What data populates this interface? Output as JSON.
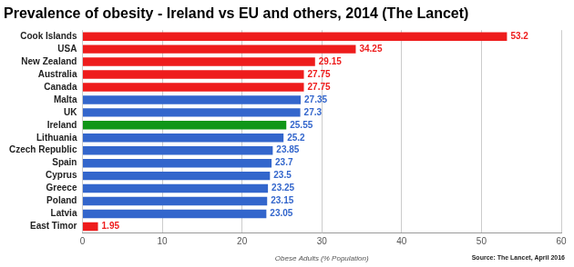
{
  "chart_data": {
    "type": "bar",
    "orientation": "horizontal",
    "title": "Prevalence of obesity - Ireland vs EU and others, 2014 (The Lancet)",
    "x_label": "Obese Adults (% Population)",
    "annotations": [
      "Source: The Lancet, April 2016"
    ],
    "categories": [
      "Cook Islands",
      "USA",
      "New Zealand",
      "Australia",
      "Canada",
      "Malta",
      "UK",
      "Ireland",
      "Lithuania",
      "Czech Republic",
      "Spain",
      "Cyprus",
      "Greece",
      "Poland",
      "Latvia",
      "East Timor"
    ],
    "values": [
      53.2,
      34.25,
      29.15,
      27.75,
      27.75,
      27.35,
      27.3,
      25.55,
      25.2,
      23.85,
      23.7,
      23.5,
      23.25,
      23.15,
      23.05,
      1.95
    ],
    "colors": [
      "#ee1c1c",
      "#ee1c1c",
      "#ee1c1c",
      "#ee1c1c",
      "#ee1c1c",
      "#3366cc",
      "#3366cc",
      "#109618",
      "#3366cc",
      "#3366cc",
      "#3366cc",
      "#3366cc",
      "#3366cc",
      "#3366cc",
      "#3366cc",
      "#ee1c1c"
    ],
    "xlim": [
      0,
      60
    ],
    "xticks": [
      0,
      10,
      20,
      30,
      40,
      50,
      60
    ],
    "grid": true,
    "data_labels": true
  }
}
